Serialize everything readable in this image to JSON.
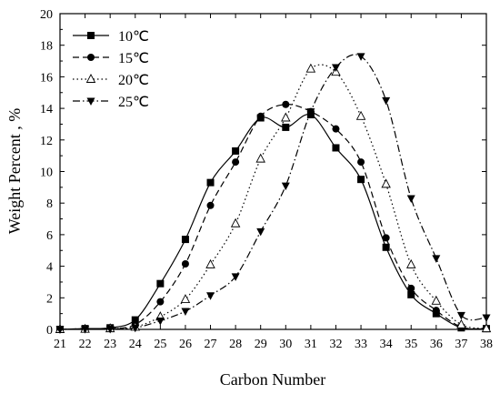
{
  "chart_data": {
    "type": "line",
    "title": "",
    "xlabel": "Carbon Number",
    "ylabel": "Weight Percent , %",
    "xlim": [
      21,
      38
    ],
    "ylim": [
      0,
      20
    ],
    "x_ticks": [
      21,
      22,
      23,
      24,
      25,
      26,
      27,
      28,
      29,
      30,
      31,
      32,
      33,
      34,
      35,
      36,
      37,
      38
    ],
    "y_ticks": [
      0,
      2,
      4,
      6,
      8,
      10,
      12,
      14,
      16,
      18,
      20
    ],
    "grid": false,
    "legend_position": "top-left",
    "x": [
      21,
      22,
      23,
      24,
      25,
      26,
      27,
      28,
      29,
      30,
      31,
      32,
      33,
      34,
      35,
      36,
      37,
      38
    ],
    "series": [
      {
        "name": "10℃",
        "line_style": "solid",
        "marker": "square",
        "values": [
          0,
          0.05,
          0.1,
          0.6,
          2.9,
          5.7,
          9.3,
          11.3,
          13.4,
          12.8,
          13.6,
          11.5,
          9.5,
          5.2,
          2.2,
          1.0,
          0.1,
          0.05
        ]
      },
      {
        "name": "15℃",
        "line_style": "dashed",
        "marker": "circle",
        "values": [
          0,
          0.05,
          0.05,
          0.3,
          1.75,
          4.15,
          7.85,
          10.6,
          13.5,
          14.25,
          13.8,
          12.7,
          10.6,
          5.8,
          2.6,
          1.2,
          0.15,
          0.05
        ]
      },
      {
        "name": "20℃",
        "line_style": "dotted",
        "marker": "triangle-up-open",
        "values": [
          0,
          0.02,
          0.05,
          0.15,
          0.8,
          1.9,
          4.1,
          6.7,
          10.8,
          13.4,
          16.5,
          16.3,
          13.5,
          9.2,
          4.1,
          1.8,
          0.3,
          0.05
        ]
      },
      {
        "name": "25℃",
        "line_style": "dashdot",
        "marker": "triangle-down",
        "values": [
          0,
          0.02,
          0.03,
          0.1,
          0.55,
          1.15,
          2.15,
          3.35,
          6.2,
          9.1,
          13.8,
          16.6,
          17.3,
          14.5,
          8.3,
          4.5,
          0.9,
          0.75
        ]
      }
    ]
  }
}
